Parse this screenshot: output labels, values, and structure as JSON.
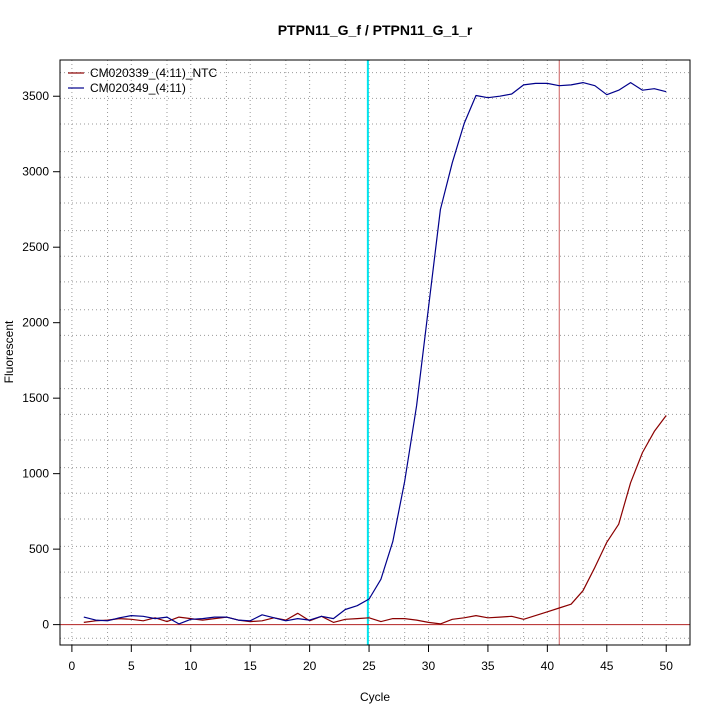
{
  "chart_data": {
    "type": "line",
    "title": "PTPN11_G_f / PTPN11_G_1_r",
    "xlabel": "Cycle",
    "ylabel": "Fluorescent",
    "xlim": [
      -1.0,
      52.0
    ],
    "ylim": [
      -135,
      3740
    ],
    "xticks": [
      0,
      5,
      10,
      15,
      20,
      25,
      30,
      35,
      40,
      45,
      50
    ],
    "yticks": [
      0,
      500,
      1000,
      1500,
      2000,
      2500,
      3000,
      3500
    ],
    "xgrid_dotted": [
      3,
      8,
      13,
      18,
      23,
      28,
      33,
      38,
      43,
      48
    ],
    "ygrid_dotted": [
      -90,
      178,
      348,
      518,
      700,
      870,
      1040,
      1223,
      1393,
      1563,
      1746,
      1916,
      2086,
      2270,
      2440,
      2610,
      2793,
      2963,
      3133,
      3316,
      3486,
      3656
    ],
    "grid": true,
    "legend_position": "top-left",
    "threshold": {
      "y": 0,
      "color": "#b22222"
    },
    "vlines": [
      {
        "x": 24.9,
        "color": "#00e5ee"
      },
      {
        "x": 41.0,
        "color": "#cd5c5c"
      }
    ],
    "x": [
      1,
      2,
      3,
      4,
      5,
      6,
      7,
      8,
      9,
      10,
      11,
      12,
      13,
      14,
      15,
      16,
      17,
      18,
      19,
      20,
      21,
      22,
      23,
      24,
      25,
      26,
      27,
      28,
      29,
      30,
      31,
      32,
      33,
      34,
      35,
      36,
      37,
      38,
      39,
      40,
      41,
      42,
      43,
      44,
      45,
      46,
      47,
      48,
      49,
      50
    ],
    "series": [
      {
        "name": "CM020339_(4:11)_NTC",
        "color": "#8b0000",
        "values": [
          15,
          25,
          30,
          40,
          35,
          25,
          45,
          20,
          50,
          40,
          30,
          40,
          50,
          30,
          20,
          25,
          45,
          30,
          75,
          25,
          55,
          15,
          35,
          40,
          45,
          20,
          40,
          40,
          30,
          15,
          5,
          35,
          45,
          60,
          45,
          50,
          55,
          35,
          60,
          85,
          110,
          135,
          225,
          380,
          545,
          665,
          940,
          1140,
          1280,
          1385
        ]
      },
      {
        "name": "CM020349_(4:11)",
        "color": "#00008b",
        "values": [
          50,
          30,
          25,
          45,
          60,
          55,
          40,
          50,
          5,
          35,
          40,
          50,
          50,
          30,
          25,
          65,
          45,
          25,
          40,
          30,
          55,
          40,
          100,
          125,
          170,
          300,
          550,
          950,
          1450,
          2100,
          2750,
          3060,
          3320,
          3505,
          3490,
          3500,
          3515,
          3575,
          3585,
          3585,
          3570,
          3575,
          3590,
          3570,
          3510,
          3540,
          3590,
          3540,
          3550,
          3530
        ]
      }
    ]
  }
}
